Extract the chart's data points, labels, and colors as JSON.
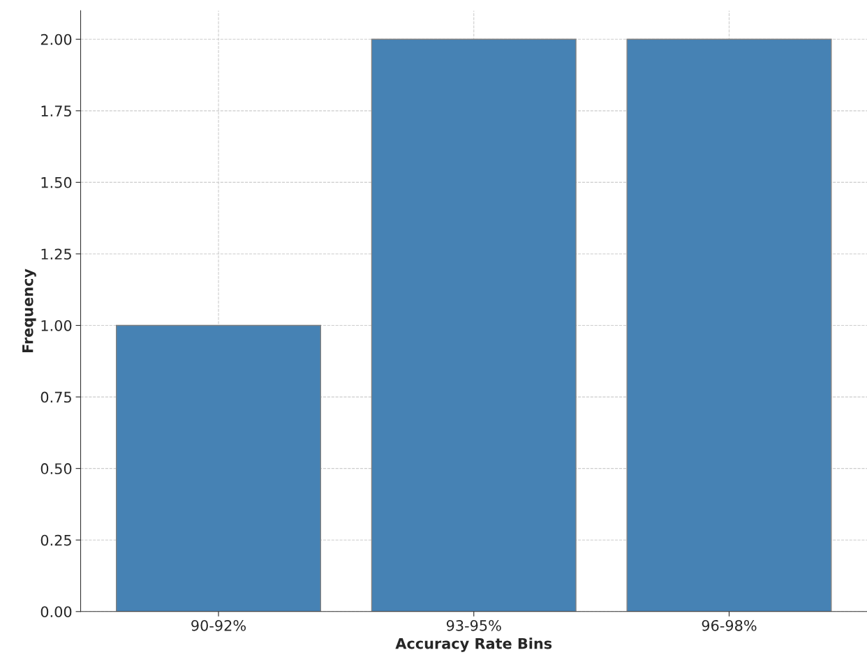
{
  "chart_data": {
    "type": "bar",
    "xlabel": "Accuracy Rate Bins",
    "ylabel": "Frequency",
    "categories": [
      "90-92%",
      "93-95%",
      "96-98%"
    ],
    "values": [
      1,
      2,
      2
    ],
    "color": "#4682b4",
    "ylim": [
      0,
      2.1
    ],
    "yticks": [
      {
        "value": 0,
        "label": "0.00"
      },
      {
        "value": 0.25,
        "label": "0.25"
      },
      {
        "value": 0.5,
        "label": "0.50"
      },
      {
        "value": 0.75,
        "label": "0.75"
      },
      {
        "value": 1,
        "label": "1.00"
      },
      {
        "value": 1.25,
        "label": "1.25"
      },
      {
        "value": 1.5,
        "label": "1.50"
      },
      {
        "value": 1.75,
        "label": "1.75"
      },
      {
        "value": 2,
        "label": "2.00"
      }
    ],
    "grid": true
  }
}
